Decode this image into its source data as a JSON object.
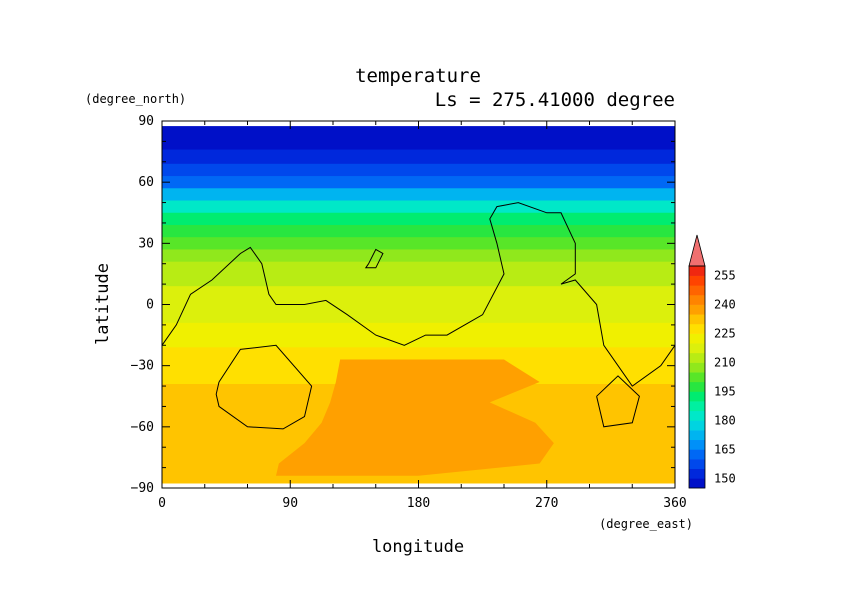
{
  "chart_data": {
    "type": "heatmap",
    "title": "temperature",
    "subtitle": "Ls = 275.41000 degree",
    "xlabel": "longitude",
    "ylabel": "latitude",
    "x_unit": "(degree_east)",
    "y_unit": "(degree_north)",
    "xlim": [
      0,
      360
    ],
    "ylim": [
      -90,
      90
    ],
    "x_ticks": [
      0,
      90,
      180,
      270,
      360
    ],
    "y_ticks": [
      90,
      60,
      30,
      0,
      -30,
      -60,
      -90
    ],
    "x_tick_labels": [
      "0",
      "90",
      "180",
      "270",
      "360"
    ],
    "y_tick_labels": [
      "90",
      "60",
      "30",
      "0",
      "−30",
      "−60",
      "−90"
    ],
    "colorbar": {
      "levels": [
        145,
        150,
        155,
        160,
        165,
        170,
        175,
        180,
        185,
        190,
        195,
        200,
        205,
        210,
        215,
        220,
        225,
        230,
        235,
        240,
        245,
        250,
        255,
        260
      ],
      "labels": [
        "255",
        "240",
        "225",
        "210",
        "195",
        "180",
        "165",
        "150"
      ],
      "label_values": [
        255,
        240,
        225,
        210,
        195,
        180,
        165,
        150
      ],
      "colors": [
        "#0010c8",
        "#0028dc",
        "#0048ec",
        "#0068f5",
        "#0090f8",
        "#00b4f0",
        "#00d4e0",
        "#00e8c8",
        "#00f0a0",
        "#00ec70",
        "#28e640",
        "#58e628",
        "#90e81c",
        "#b8ec14",
        "#dcf00c",
        "#f0f000",
        "#ffe000",
        "#ffc400",
        "#ffa000",
        "#ff8400",
        "#ff6400",
        "#ff4400",
        "#f02810",
        "#f07070"
      ]
    },
    "latitude_temperature_profile": {
      "lat": [
        87.5,
        80,
        72,
        66,
        60,
        54,
        48,
        42,
        36,
        30,
        24,
        18,
        12,
        6,
        0,
        -6,
        -12,
        -18,
        -24,
        -30,
        -36,
        -42,
        -48,
        -54,
        -60,
        -66,
        -72,
        -78,
        -84,
        -87.5
      ],
      "temp": [
        148,
        148,
        150,
        155,
        162,
        170,
        180,
        190,
        198,
        204,
        209,
        212,
        214,
        216,
        217,
        219,
        221,
        224,
        227,
        228,
        229,
        230,
        231,
        232,
        233,
        234,
        234,
        234,
        233,
        233
      ]
    },
    "warm_region": {
      "value": 237,
      "lat": [
        -27,
        -38,
        -48,
        -58,
        -68,
        -78,
        -84
      ],
      "lon_start": [
        125,
        122,
        118,
        112,
        100,
        82,
        80
      ],
      "lon_end": [
        240,
        265,
        230,
        262,
        275,
        265,
        180
      ]
    },
    "contours": [
      {
        "lon": [
          0,
          10,
          20,
          35,
          55,
          62,
          70,
          75,
          80,
          100,
          115,
          130,
          150,
          170,
          185,
          200,
          225,
          240,
          235,
          230,
          235,
          250,
          270,
          280,
          290,
          290,
          280,
          290,
          305,
          310,
          330,
          350,
          360
        ],
        "lat": [
          -20,
          -10,
          5,
          12,
          25,
          28,
          20,
          5,
          0,
          0,
          2,
          -5,
          -15,
          -20,
          -15,
          -15,
          -5,
          15,
          30,
          42,
          48,
          50,
          45,
          45,
          30,
          15,
          10,
          12,
          0,
          -20,
          -40,
          -30,
          -20
        ]
      },
      {
        "lon": [
          145,
          150,
          155,
          150,
          143,
          145
        ],
        "lat": [
          20,
          27,
          25,
          18,
          18,
          20
        ]
      },
      {
        "lon": [
          40,
          55,
          80,
          105,
          100,
          85,
          60,
          40,
          38,
          40
        ],
        "lat": [
          -38,
          -22,
          -20,
          -40,
          -55,
          -61,
          -60,
          -50,
          -44,
          -38
        ]
      },
      {
        "lon": [
          305,
          320,
          335,
          330,
          310,
          305
        ],
        "lat": [
          -45,
          -35,
          -45,
          -58,
          -60,
          -45
        ]
      }
    ]
  }
}
